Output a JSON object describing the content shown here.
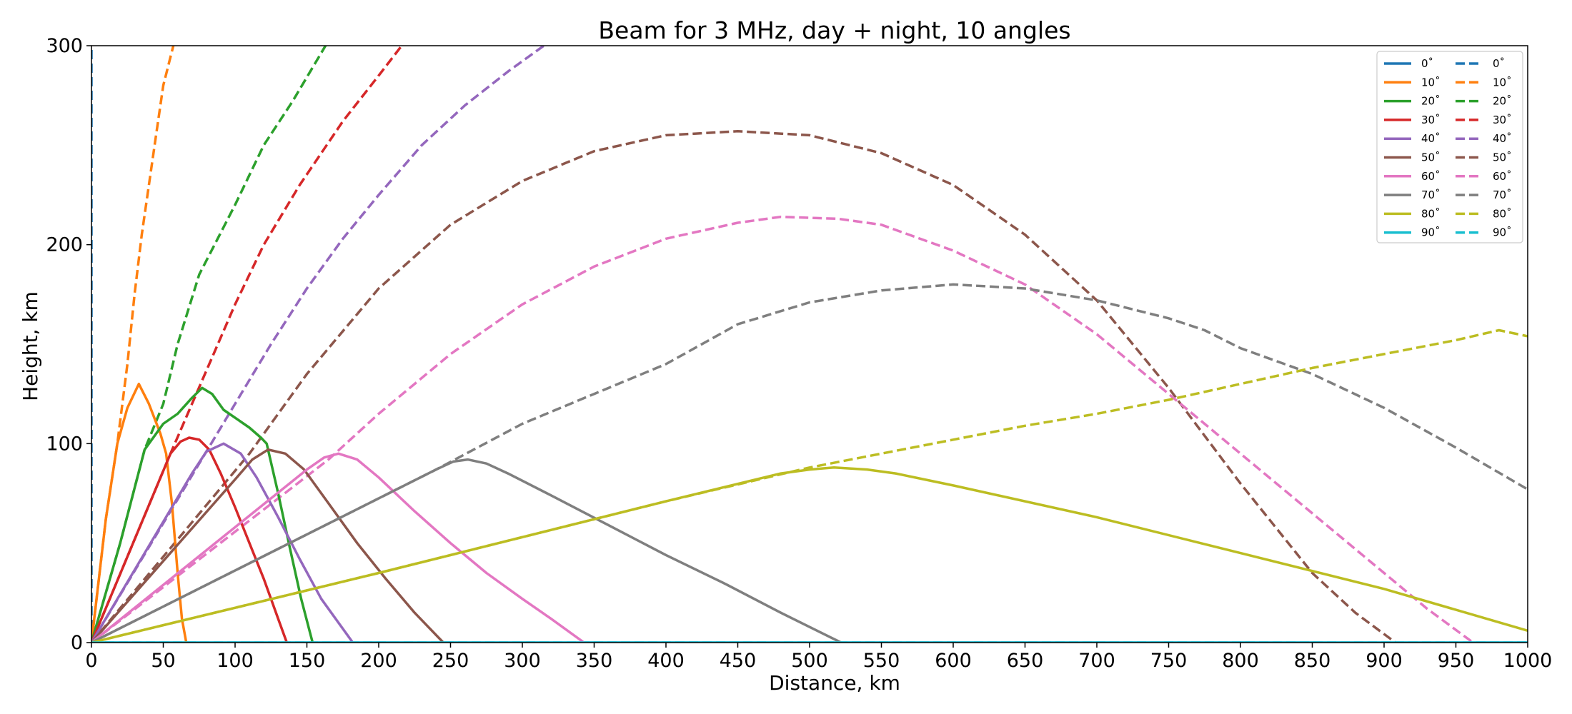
{
  "chart_data": {
    "type": "line",
    "title": "Beam for 3 MHz, day + night, 10 angles",
    "xlabel": "Distance, km",
    "ylabel": "Height, km",
    "xlim": [
      0,
      1000
    ],
    "ylim": [
      0,
      300
    ],
    "xticks": [
      "0",
      "50",
      "100",
      "150",
      "200",
      "250",
      "300",
      "350",
      "400",
      "450",
      "500",
      "550",
      "600",
      "650",
      "700",
      "750",
      "800",
      "850",
      "900",
      "950",
      "1000"
    ],
    "yticks": [
      "0",
      "100",
      "200",
      "300"
    ],
    "grid": false,
    "legend_position": "top-right",
    "legend_columns": 2,
    "colors": {
      "0": "#1f77b4",
      "10": "#ff7f0e",
      "20": "#2ca02c",
      "30": "#d62728",
      "40": "#9467bd",
      "50": "#8c564b",
      "60": "#e377c2",
      "70": "#7f7f7f",
      "80": "#bcbd22",
      "90": "#17becf"
    },
    "series": [
      {
        "name": "0$^\\circ$",
        "label": "0˚",
        "angle": "0",
        "style": "solid",
        "points": [
          [
            0,
            0
          ],
          [
            1000,
            0
          ]
        ]
      },
      {
        "name": "10$^\\circ$",
        "label": "10˚",
        "angle": "10",
        "style": "solid",
        "points": [
          [
            0,
            0
          ],
          [
            10,
            62
          ],
          [
            18,
            100
          ],
          [
            25,
            118
          ],
          [
            33,
            130
          ],
          [
            40,
            120
          ],
          [
            48,
            105
          ],
          [
            52,
            95
          ],
          [
            56,
            70
          ],
          [
            60,
            35
          ],
          [
            63,
            12
          ],
          [
            66,
            0
          ]
        ]
      },
      {
        "name": "20$^\\circ$",
        "label": "20˚",
        "angle": "20",
        "style": "solid",
        "points": [
          [
            0,
            0
          ],
          [
            20,
            50
          ],
          [
            37,
            97
          ],
          [
            50,
            110
          ],
          [
            60,
            115
          ],
          [
            70,
            123
          ],
          [
            77,
            128
          ],
          [
            84,
            125
          ],
          [
            92,
            117
          ],
          [
            100,
            113
          ],
          [
            110,
            108
          ],
          [
            118,
            103
          ],
          [
            122,
            100
          ],
          [
            130,
            75
          ],
          [
            138,
            48
          ],
          [
            146,
            22
          ],
          [
            154,
            0
          ]
        ]
      },
      {
        "name": "30$^\\circ$",
        "label": "30˚",
        "angle": "30",
        "style": "solid",
        "points": [
          [
            0,
            0
          ],
          [
            55,
            95
          ],
          [
            62,
            101
          ],
          [
            68,
            103
          ],
          [
            75,
            102
          ],
          [
            82,
            97
          ],
          [
            90,
            85
          ],
          [
            100,
            68
          ],
          [
            110,
            50
          ],
          [
            120,
            32
          ],
          [
            130,
            12
          ],
          [
            136,
            0
          ]
        ]
      },
      {
        "name": "40$^\\circ$",
        "label": "40˚",
        "angle": "40",
        "style": "solid",
        "points": [
          [
            0,
            0
          ],
          [
            70,
            85
          ],
          [
            80,
            96
          ],
          [
            92,
            100
          ],
          [
            104,
            95
          ],
          [
            115,
            83
          ],
          [
            130,
            63
          ],
          [
            145,
            42
          ],
          [
            160,
            22
          ],
          [
            172,
            10
          ],
          [
            182,
            0
          ]
        ]
      },
      {
        "name": "50$^\\circ$",
        "label": "50˚",
        "angle": "50",
        "style": "solid",
        "points": [
          [
            0,
            0
          ],
          [
            100,
            82
          ],
          [
            112,
            92
          ],
          [
            123,
            97
          ],
          [
            135,
            95
          ],
          [
            148,
            87
          ],
          [
            165,
            70
          ],
          [
            185,
            50
          ],
          [
            205,
            32
          ],
          [
            225,
            15
          ],
          [
            245,
            0
          ]
        ]
      },
      {
        "name": "60$^\\circ$",
        "label": "60˚",
        "angle": "60",
        "style": "solid",
        "points": [
          [
            0,
            0
          ],
          [
            150,
            87
          ],
          [
            162,
            93
          ],
          [
            172,
            95
          ],
          [
            185,
            92
          ],
          [
            200,
            83
          ],
          [
            225,
            66
          ],
          [
            250,
            50
          ],
          [
            275,
            35
          ],
          [
            300,
            22
          ],
          [
            320,
            12
          ],
          [
            343,
            0
          ]
        ]
      },
      {
        "name": "70$^\\circ$",
        "label": "70˚",
        "angle": "70",
        "style": "solid",
        "points": [
          [
            0,
            0
          ],
          [
            240,
            87
          ],
          [
            252,
            91
          ],
          [
            262,
            92
          ],
          [
            275,
            90
          ],
          [
            290,
            85
          ],
          [
            320,
            74
          ],
          [
            360,
            59
          ],
          [
            400,
            44
          ],
          [
            440,
            30
          ],
          [
            480,
            15
          ],
          [
            522,
            0
          ]
        ]
      },
      {
        "name": "80$^\\circ$",
        "label": "80˚",
        "angle": "80",
        "style": "solid",
        "points": [
          [
            0,
            0
          ],
          [
            200,
            35
          ],
          [
            400,
            71
          ],
          [
            480,
            85
          ],
          [
            500,
            87
          ],
          [
            517,
            88
          ],
          [
            540,
            87
          ],
          [
            560,
            85
          ],
          [
            600,
            79
          ],
          [
            700,
            63
          ],
          [
            800,
            45
          ],
          [
            900,
            27
          ],
          [
            1000,
            6
          ]
        ]
      },
      {
        "name": "90$^\\circ$",
        "label": "90˚",
        "angle": "90",
        "style": "solid",
        "points": [
          [
            0,
            0
          ],
          [
            1000,
            0
          ]
        ]
      },
      {
        "name": "0$^\\circ$",
        "label": "0˚",
        "angle": "0",
        "style": "dashed",
        "points": [
          [
            0,
            0
          ],
          [
            0,
            300
          ]
        ]
      },
      {
        "name": "10$^\\circ$",
        "label": "10˚",
        "angle": "10",
        "style": "dashed",
        "points": [
          [
            0,
            0
          ],
          [
            10,
            62
          ],
          [
            18,
            100
          ],
          [
            25,
            140
          ],
          [
            30,
            175
          ],
          [
            35,
            205
          ],
          [
            40,
            230
          ],
          [
            45,
            255
          ],
          [
            50,
            280
          ],
          [
            57,
            300
          ]
        ]
      },
      {
        "name": "20$^\\circ$",
        "label": "20˚",
        "angle": "20",
        "style": "dashed",
        "points": [
          [
            0,
            0
          ],
          [
            20,
            50
          ],
          [
            37,
            97
          ],
          [
            50,
            120
          ],
          [
            60,
            150
          ],
          [
            75,
            185
          ],
          [
            100,
            220
          ],
          [
            120,
            250
          ],
          [
            140,
            272
          ],
          [
            163,
            300
          ]
        ]
      },
      {
        "name": "30$^\\circ$",
        "label": "30˚",
        "angle": "30",
        "style": "dashed",
        "points": [
          [
            0,
            0
          ],
          [
            55,
            95
          ],
          [
            70,
            120
          ],
          [
            85,
            145
          ],
          [
            100,
            170
          ],
          [
            120,
            200
          ],
          [
            145,
            230
          ],
          [
            175,
            262
          ],
          [
            200,
            285
          ],
          [
            216,
            300
          ]
        ]
      },
      {
        "name": "40$^\\circ$",
        "label": "40˚",
        "angle": "40",
        "style": "dashed",
        "points": [
          [
            0,
            0
          ],
          [
            80,
            96
          ],
          [
            100,
            120
          ],
          [
            125,
            150
          ],
          [
            150,
            178
          ],
          [
            175,
            203
          ],
          [
            200,
            225
          ],
          [
            230,
            250
          ],
          [
            260,
            270
          ],
          [
            290,
            287
          ],
          [
            315,
            300
          ]
        ]
      },
      {
        "name": "50$^\\circ$",
        "label": "50˚",
        "angle": "50",
        "style": "dashed",
        "points": [
          [
            0,
            0
          ],
          [
            110,
            95
          ],
          [
            150,
            135
          ],
          [
            200,
            178
          ],
          [
            250,
            210
          ],
          [
            300,
            232
          ],
          [
            350,
            247
          ],
          [
            400,
            255
          ],
          [
            450,
            257
          ],
          [
            500,
            255
          ],
          [
            550,
            246
          ],
          [
            600,
            230
          ],
          [
            650,
            205
          ],
          [
            700,
            172
          ],
          [
            750,
            128
          ],
          [
            800,
            80
          ],
          [
            850,
            35
          ],
          [
            880,
            15
          ],
          [
            908,
            0
          ]
        ]
      },
      {
        "name": "60$^\\circ$",
        "label": "60˚",
        "angle": "60",
        "style": "dashed",
        "points": [
          [
            0,
            0
          ],
          [
            165,
            92
          ],
          [
            200,
            115
          ],
          [
            250,
            145
          ],
          [
            300,
            170
          ],
          [
            350,
            189
          ],
          [
            400,
            203
          ],
          [
            450,
            211
          ],
          [
            480,
            214
          ],
          [
            520,
            213
          ],
          [
            550,
            210
          ],
          [
            600,
            197
          ],
          [
            650,
            180
          ],
          [
            700,
            155
          ],
          [
            750,
            125
          ],
          [
            800,
            95
          ],
          [
            850,
            65
          ],
          [
            900,
            35
          ],
          [
            930,
            17
          ],
          [
            962,
            0
          ]
        ]
      },
      {
        "name": "70$^\\circ$",
        "label": "70˚",
        "angle": "70",
        "style": "dashed",
        "points": [
          [
            0,
            0
          ],
          [
            240,
            87
          ],
          [
            300,
            110
          ],
          [
            350,
            125
          ],
          [
            400,
            140
          ],
          [
            450,
            160
          ],
          [
            500,
            171
          ],
          [
            550,
            177
          ],
          [
            600,
            180
          ],
          [
            650,
            178
          ],
          [
            700,
            172
          ],
          [
            750,
            163
          ],
          [
            775,
            157
          ],
          [
            800,
            148
          ],
          [
            850,
            135
          ],
          [
            900,
            118
          ],
          [
            950,
            98
          ],
          [
            1000,
            77
          ]
        ]
      },
      {
        "name": "80$^\\circ$",
        "label": "80˚",
        "angle": "80",
        "style": "dashed",
        "points": [
          [
            0,
            0
          ],
          [
            200,
            35
          ],
          [
            400,
            71
          ],
          [
            500,
            88
          ],
          [
            550,
            95
          ],
          [
            600,
            102
          ],
          [
            650,
            109
          ],
          [
            700,
            115
          ],
          [
            750,
            122
          ],
          [
            800,
            130
          ],
          [
            850,
            138
          ],
          [
            900,
            145
          ],
          [
            950,
            152
          ],
          [
            980,
            157
          ],
          [
            1000,
            154
          ]
        ]
      },
      {
        "name": "90$^\\circ$",
        "label": "90˚",
        "angle": "90",
        "style": "dashed",
        "points": [
          [
            0,
            0
          ],
          [
            1000,
            0
          ]
        ]
      }
    ]
  }
}
